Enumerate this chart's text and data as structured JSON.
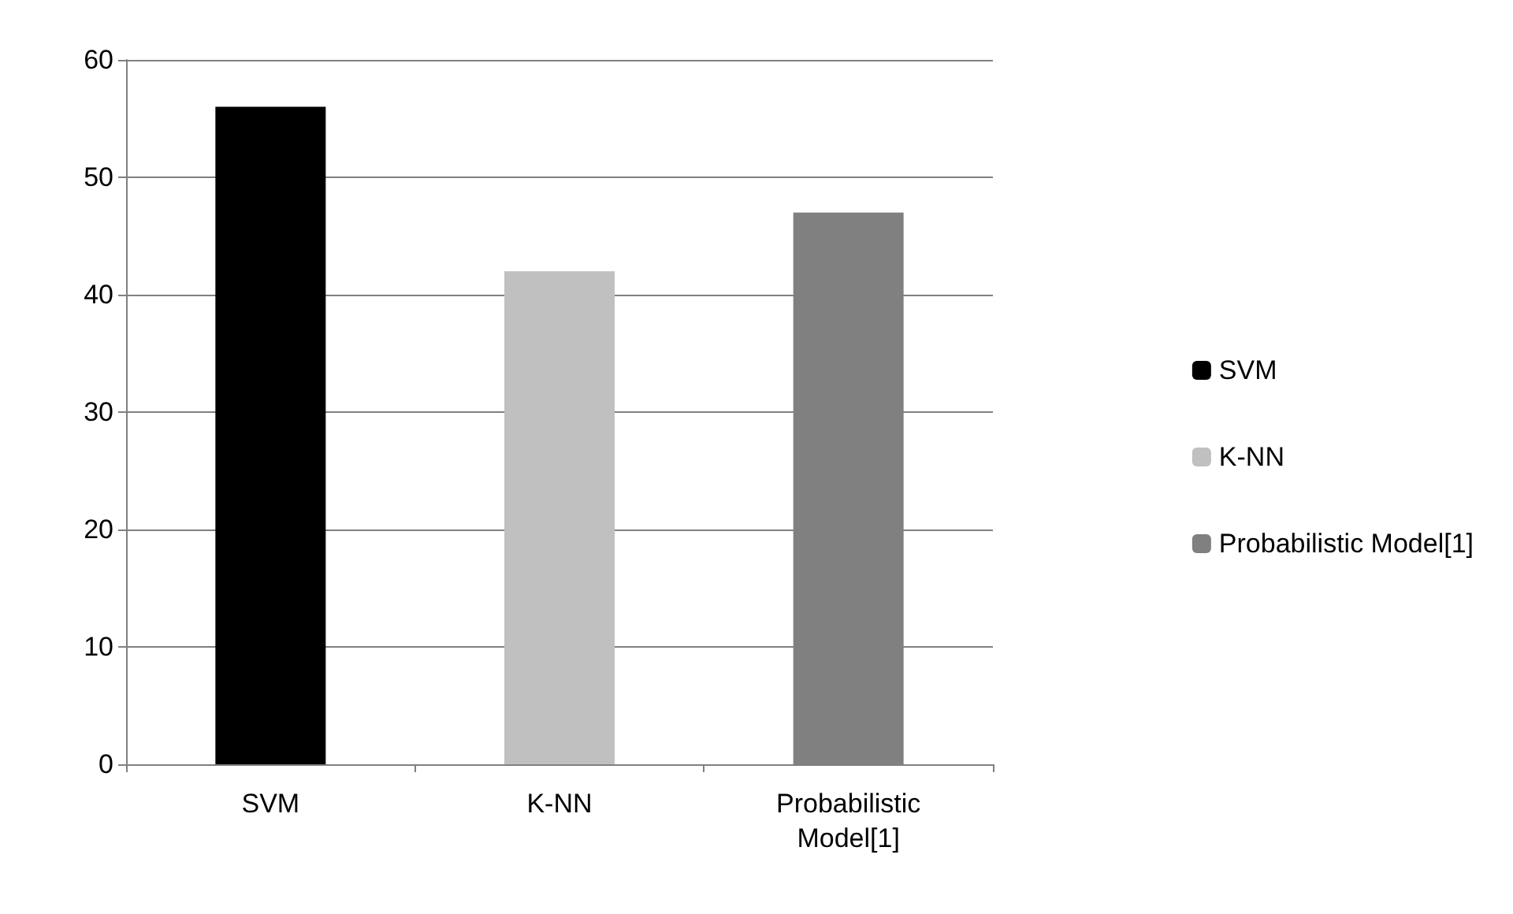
{
  "chart_data": {
    "type": "bar",
    "categories": [
      "SVM",
      "K-NN",
      "Probabilistic\nModel[1]"
    ],
    "series": [
      {
        "name": "SVM",
        "color": "#000000",
        "values": [
          56,
          null,
          null
        ]
      },
      {
        "name": "K-NN",
        "color": "#c0c0c0",
        "values": [
          null,
          42,
          null
        ]
      },
      {
        "name": "Probabilistic Model[1]",
        "color": "#808080",
        "values": [
          null,
          null,
          47
        ]
      }
    ],
    "ylim": [
      0,
      60
    ],
    "yticks": [
      0,
      10,
      20,
      30,
      40,
      50,
      60
    ],
    "grid": "y",
    "legend": "right"
  }
}
